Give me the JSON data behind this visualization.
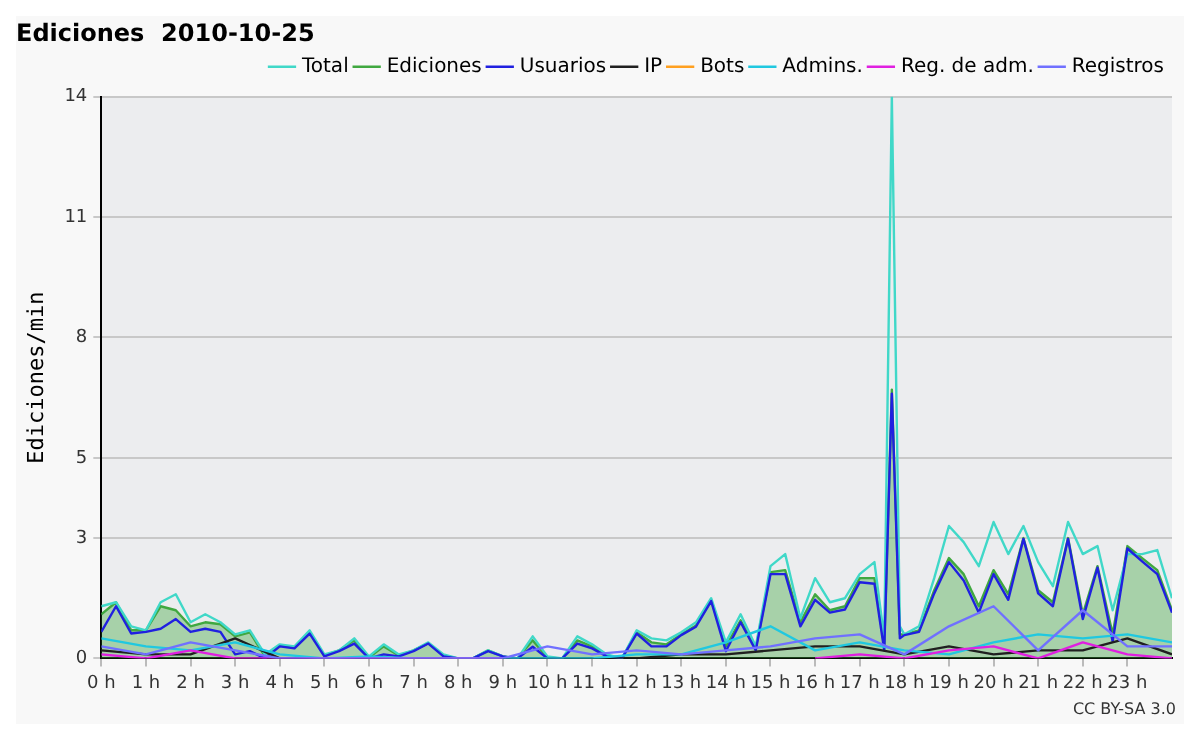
{
  "chart_data": {
    "type": "line",
    "title": "Ediciones  2010-10-25",
    "ylabel": "Ediciones/min",
    "annotations": [
      "CC BY-SA 3.0"
    ],
    "x": [
      0,
      0.33,
      0.67,
      1,
      1.33,
      1.67,
      2,
      2.33,
      2.67,
      3,
      3.33,
      3.67,
      4,
      4.33,
      4.67,
      5,
      5.33,
      5.67,
      6,
      6.33,
      6.67,
      7,
      7.33,
      7.67,
      8,
      8.33,
      8.67,
      9,
      9.33,
      9.67,
      10,
      10.33,
      10.67,
      11,
      11.33,
      11.67,
      12,
      12.33,
      12.67,
      13,
      13.33,
      13.67,
      14,
      14.33,
      14.67,
      15,
      15.33,
      15.67,
      16,
      16.33,
      16.67,
      17,
      17.33,
      17.55,
      17.72,
      17.9,
      18,
      18.33,
      18.67,
      19,
      19.33,
      19.67,
      20,
      20.33,
      20.67,
      21,
      21.33,
      21.67,
      22,
      22.33,
      22.67,
      23,
      23.33,
      23.67,
      24
    ],
    "series": [
      {
        "name": "Total",
        "color": "#40d8c8",
        "values": [
          1.3,
          1.4,
          0.8,
          0.7,
          1.4,
          1.6,
          0.9,
          1.1,
          0.9,
          0.6,
          0.7,
          0.1,
          0.35,
          0.3,
          0.7,
          0.1,
          0.2,
          0.5,
          0.05,
          0.35,
          0.1,
          0.2,
          0.4,
          0.1,
          0,
          0,
          0.2,
          0.05,
          0,
          0.55,
          0.05,
          0,
          0.55,
          0.35,
          0.1,
          0,
          0.7,
          0.5,
          0.45,
          0.65,
          0.9,
          1.5,
          0.4,
          1.1,
          0.3,
          2.3,
          2.6,
          1.0,
          2.0,
          1.4,
          1.5,
          2.1,
          2.4,
          0.5,
          14,
          0.8,
          0.6,
          0.8,
          2.0,
          3.3,
          2.9,
          2.3,
          3.4,
          2.6,
          3.3,
          2.4,
          1.8,
          3.4,
          2.6,
          2.8,
          1.2,
          2.6,
          2.6,
          2.7,
          1.5
        ]
      },
      {
        "name": "Ediciones",
        "type": "area",
        "color": "#40a840",
        "values": [
          1.1,
          1.4,
          0.7,
          0.7,
          1.3,
          1.2,
          0.8,
          0.9,
          0.85,
          0.55,
          0.65,
          0.05,
          0.32,
          0.28,
          0.65,
          0.07,
          0.2,
          0.45,
          0.02,
          0.3,
          0.07,
          0.2,
          0.38,
          0.07,
          0,
          0,
          0.2,
          0.05,
          0,
          0.45,
          0.02,
          0,
          0.45,
          0.3,
          0.07,
          0,
          0.65,
          0.4,
          0.35,
          0.6,
          0.82,
          1.45,
          0.3,
          0.95,
          0.25,
          2.15,
          2.2,
          0.9,
          1.6,
          1.2,
          1.3,
          2.0,
          2.0,
          0.3,
          6.7,
          0.6,
          0.6,
          0.7,
          1.7,
          2.5,
          2.1,
          1.3,
          2.2,
          1.6,
          3.0,
          1.7,
          1.4,
          3.0,
          1.1,
          2.3,
          0.6,
          2.8,
          2.5,
          2.2,
          1.2
        ]
      },
      {
        "name": "Usuarios",
        "color": "#2020e0",
        "values": [
          0.66,
          1.3,
          0.62,
          0.66,
          0.74,
          0.98,
          0.66,
          0.74,
          0.66,
          0.1,
          0.18,
          0,
          0.3,
          0.25,
          0.62,
          0.05,
          0.18,
          0.37,
          0,
          0.1,
          0.05,
          0.18,
          0.37,
          0.05,
          0,
          0,
          0.18,
          0.05,
          0,
          0.29,
          0,
          0,
          0.37,
          0.25,
          0.05,
          0,
          0.62,
          0.3,
          0.3,
          0.58,
          0.79,
          1.43,
          0.18,
          0.9,
          0.2,
          2.1,
          2.1,
          0.8,
          1.46,
          1.14,
          1.22,
          1.9,
          1.86,
          0.2,
          6.6,
          0.5,
          0.58,
          0.66,
          1.62,
          2.4,
          1.94,
          1.14,
          2.1,
          1.46,
          2.98,
          1.62,
          1.3,
          2.98,
          0.98,
          2.26,
          0.42,
          2.74,
          2.42,
          2.1,
          1.14
        ]
      },
      {
        "name": "IP",
        "color": "#202020",
        "x": [
          0,
          1,
          2,
          3,
          4,
          5,
          6,
          7,
          8,
          9,
          10,
          11,
          12,
          13,
          14,
          15,
          16,
          17,
          18,
          19,
          20,
          21,
          22,
          23,
          24
        ],
        "values": [
          0.2,
          0.1,
          0.1,
          0.5,
          0,
          0,
          0,
          0,
          0,
          0,
          0,
          0,
          0,
          0.1,
          0.1,
          0.2,
          0.3,
          0.3,
          0.1,
          0.3,
          0.1,
          0.2,
          0.2,
          0.5,
          0.1
        ]
      },
      {
        "name": "Bots",
        "color": "#ffa020",
        "values": [
          null,
          null,
          null,
          null,
          null,
          null,
          null,
          null,
          null,
          null,
          null,
          null,
          null,
          null,
          null,
          null,
          null,
          null,
          null,
          null,
          null,
          null,
          null,
          null,
          null,
          null,
          null,
          null,
          null,
          null,
          null,
          null,
          null,
          null,
          null,
          null,
          null,
          null,
          null,
          null,
          null,
          null,
          null,
          null,
          null,
          null,
          null,
          null,
          null,
          null,
          null,
          null,
          null,
          null,
          null,
          null,
          null,
          null,
          null,
          null,
          null,
          null,
          null,
          null,
          null,
          null,
          null,
          null,
          null,
          null,
          null,
          null,
          null,
          null,
          null
        ]
      },
      {
        "name": "Admins.",
        "color": "#20c8e0",
        "x": [
          0,
          1,
          2,
          3,
          4,
          5,
          6,
          7,
          8,
          9,
          10,
          11,
          12,
          13,
          14,
          15,
          16,
          17,
          18,
          19,
          20,
          21,
          22,
          23,
          24
        ],
        "values": [
          0.5,
          0.3,
          0.2,
          0.4,
          0.1,
          0,
          0.05,
          0,
          0,
          0,
          0,
          0,
          0.1,
          0.1,
          0.4,
          0.8,
          0.2,
          0.4,
          0.2,
          0.1,
          0.4,
          0.6,
          0.5,
          0.6,
          0.4
        ]
      },
      {
        "name": "Reg. de adm.",
        "color": "#e020e0",
        "x": [
          0,
          1,
          2,
          3,
          4,
          5,
          6,
          7,
          8,
          9,
          10,
          11,
          12,
          13,
          14,
          15,
          16,
          17,
          18,
          19,
          20,
          21,
          22,
          23,
          24
        ],
        "values": [
          0.1,
          0,
          0.2,
          0,
          0,
          0,
          0,
          0,
          0,
          0,
          null,
          null,
          null,
          null,
          null,
          null,
          0,
          0.1,
          0,
          0.2,
          0.3,
          0,
          0.4,
          0.1,
          0
        ]
      },
      {
        "name": "Registros",
        "color": "#7070ff",
        "x": [
          0,
          1,
          2,
          3,
          4,
          5,
          6,
          7,
          8,
          9,
          10,
          11,
          12,
          13,
          14,
          15,
          16,
          17,
          18,
          19,
          20,
          21,
          22,
          23,
          24
        ],
        "values": [
          0.3,
          0.1,
          0.4,
          0.2,
          0,
          0,
          0,
          0,
          0,
          0,
          0.3,
          0.1,
          0.2,
          0.1,
          0.2,
          0.3,
          0.5,
          0.6,
          0.1,
          0.8,
          1.3,
          0.2,
          1.2,
          0.3,
          0.3
        ]
      }
    ],
    "xlim": [
      0,
      24
    ],
    "xticks": [
      {
        "value": 0,
        "label": "0 h"
      },
      {
        "value": 1,
        "label": "1 h"
      },
      {
        "value": 2,
        "label": "2 h"
      },
      {
        "value": 3,
        "label": "3 h"
      },
      {
        "value": 4,
        "label": "4 h"
      },
      {
        "value": 5,
        "label": "5 h"
      },
      {
        "value": 6,
        "label": "6 h"
      },
      {
        "value": 7,
        "label": "7 h"
      },
      {
        "value": 8,
        "label": "8 h"
      },
      {
        "value": 9,
        "label": "9 h"
      },
      {
        "value": 10,
        "label": "10 h"
      },
      {
        "value": 11,
        "label": "11 h"
      },
      {
        "value": 12,
        "label": "12 h"
      },
      {
        "value": 13,
        "label": "13 h"
      },
      {
        "value": 14,
        "label": "14 h"
      },
      {
        "value": 15,
        "label": "15 h"
      },
      {
        "value": 16,
        "label": "16 h"
      },
      {
        "value": 17,
        "label": "17 h"
      },
      {
        "value": 18,
        "label": "18 h"
      },
      {
        "value": 19,
        "label": "19 h"
      },
      {
        "value": 20,
        "label": "20 h"
      },
      {
        "value": 21,
        "label": "21 h"
      },
      {
        "value": 22,
        "label": "22 h"
      },
      {
        "value": 23,
        "label": "23 h"
      }
    ],
    "ylim": [
      0,
      14
    ],
    "yticks": [
      0,
      3,
      5,
      8,
      11,
      14
    ],
    "grid": "y",
    "legend": "top right",
    "marker": "none",
    "line_style": "solid"
  }
}
